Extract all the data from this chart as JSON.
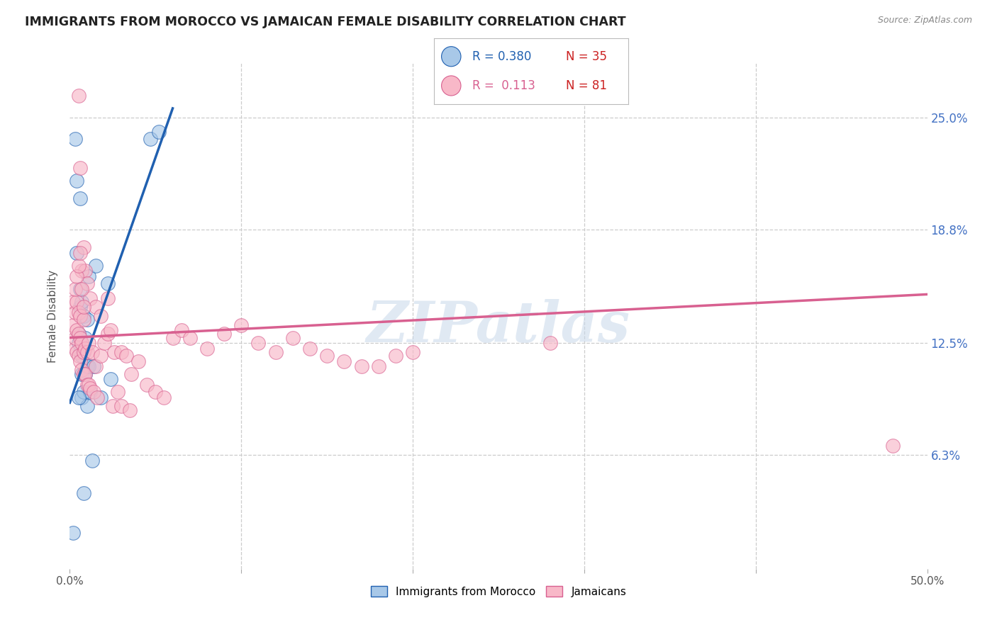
{
  "title": "IMMIGRANTS FROM MOROCCO VS JAMAICAN FEMALE DISABILITY CORRELATION CHART",
  "source": "Source: ZipAtlas.com",
  "ylabel": "Female Disability",
  "x_min": 0.0,
  "x_max": 0.5,
  "y_min": 0.0,
  "y_max": 0.28,
  "y_tick_positions": [
    0.063,
    0.125,
    0.188,
    0.25
  ],
  "y_tick_labels": [
    "6.3%",
    "12.5%",
    "18.8%",
    "25.0%"
  ],
  "color_blue": "#a8c8e8",
  "color_pink": "#f8b8c8",
  "line_blue": "#2060b0",
  "line_pink": "#d86090",
  "watermark": "ZIPatlas",
  "morocco_x": [
    0.002,
    0.003,
    0.004,
    0.004,
    0.005,
    0.005,
    0.006,
    0.006,
    0.006,
    0.007,
    0.007,
    0.007,
    0.007,
    0.008,
    0.008,
    0.008,
    0.009,
    0.009,
    0.01,
    0.01,
    0.01,
    0.011,
    0.011,
    0.012,
    0.013,
    0.014,
    0.015,
    0.018,
    0.022,
    0.024,
    0.006,
    0.008,
    0.005,
    0.047,
    0.052
  ],
  "morocco_y": [
    0.02,
    0.238,
    0.175,
    0.215,
    0.125,
    0.13,
    0.12,
    0.145,
    0.155,
    0.095,
    0.108,
    0.118,
    0.148,
    0.098,
    0.12,
    0.14,
    0.108,
    0.128,
    0.09,
    0.112,
    0.138,
    0.112,
    0.162,
    0.098,
    0.06,
    0.112,
    0.168,
    0.095,
    0.158,
    0.105,
    0.205,
    0.042,
    0.095,
    0.238,
    0.242
  ],
  "jamaican_x": [
    0.002,
    0.002,
    0.003,
    0.003,
    0.003,
    0.004,
    0.004,
    0.004,
    0.005,
    0.005,
    0.005,
    0.006,
    0.006,
    0.006,
    0.007,
    0.007,
    0.008,
    0.008,
    0.008,
    0.009,
    0.009,
    0.01,
    0.01,
    0.011,
    0.011,
    0.012,
    0.013,
    0.014,
    0.015,
    0.016,
    0.018,
    0.02,
    0.022,
    0.024,
    0.026,
    0.028,
    0.03,
    0.033,
    0.036,
    0.04,
    0.045,
    0.05,
    0.055,
    0.06,
    0.065,
    0.07,
    0.08,
    0.09,
    0.1,
    0.11,
    0.12,
    0.13,
    0.14,
    0.15,
    0.16,
    0.17,
    0.18,
    0.19,
    0.2,
    0.005,
    0.006,
    0.007,
    0.008,
    0.009,
    0.01,
    0.012,
    0.015,
    0.018,
    0.022,
    0.025,
    0.03,
    0.035,
    0.003,
    0.004,
    0.005,
    0.006,
    0.007,
    0.008,
    0.28,
    0.48
  ],
  "jamaican_y": [
    0.135,
    0.148,
    0.122,
    0.128,
    0.142,
    0.12,
    0.132,
    0.148,
    0.118,
    0.13,
    0.142,
    0.115,
    0.128,
    0.14,
    0.11,
    0.125,
    0.108,
    0.12,
    0.138,
    0.108,
    0.122,
    0.102,
    0.12,
    0.102,
    0.125,
    0.1,
    0.12,
    0.098,
    0.112,
    0.095,
    0.118,
    0.125,
    0.13,
    0.132,
    0.12,
    0.098,
    0.12,
    0.118,
    0.108,
    0.115,
    0.102,
    0.098,
    0.095,
    0.128,
    0.132,
    0.128,
    0.122,
    0.13,
    0.135,
    0.125,
    0.12,
    0.128,
    0.122,
    0.118,
    0.115,
    0.112,
    0.112,
    0.118,
    0.12,
    0.262,
    0.222,
    0.165,
    0.178,
    0.165,
    0.158,
    0.15,
    0.145,
    0.14,
    0.15,
    0.09,
    0.09,
    0.088,
    0.155,
    0.162,
    0.168,
    0.175,
    0.155,
    0.145,
    0.125,
    0.068
  ],
  "blue_line_x": [
    0.0,
    0.06
  ],
  "blue_line_y": [
    0.092,
    0.255
  ],
  "pink_line_x": [
    0.0,
    0.5
  ],
  "pink_line_y": [
    0.128,
    0.152
  ]
}
